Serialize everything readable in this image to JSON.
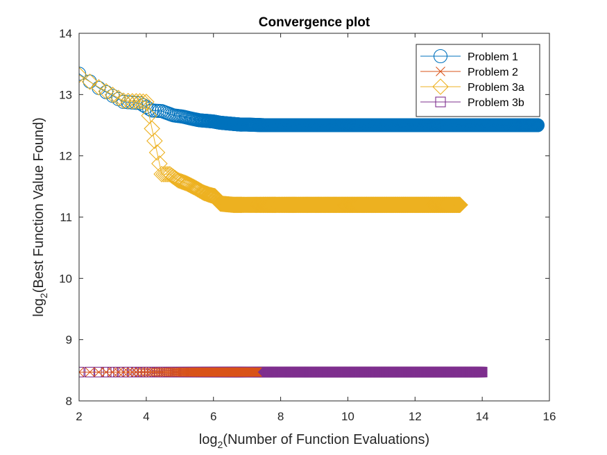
{
  "chart_data": {
    "type": "line",
    "title": "Convergence plot",
    "xlabel": {
      "prefix": "log",
      "sub": "2",
      "suffix": "(Number of Function Evaluations)"
    },
    "ylabel": {
      "prefix": "log",
      "sub": "2",
      "suffix": "(Best Function Value Found)"
    },
    "xlim": [
      2,
      16
    ],
    "ylim": [
      8,
      14
    ],
    "xticks": [
      2,
      4,
      6,
      8,
      10,
      12,
      14,
      16
    ],
    "yticks": [
      8,
      9,
      10,
      11,
      12,
      13,
      14
    ],
    "grid": false,
    "legend": {
      "position": "top-right"
    },
    "series": [
      {
        "name": "Problem 1",
        "color": "#0072BD",
        "marker": "circle",
        "x_end": 15.65,
        "points": [
          [
            2,
            13.34
          ],
          [
            2.58,
            13.11
          ],
          [
            3.32,
            12.88
          ],
          [
            3.81,
            12.86
          ],
          [
            4.17,
            12.74
          ],
          [
            4.46,
            12.73
          ],
          [
            4.81,
            12.66
          ],
          [
            5.09,
            12.64
          ],
          [
            5.32,
            12.61
          ],
          [
            5.58,
            12.58
          ],
          [
            5.81,
            12.57
          ],
          [
            6.0,
            12.56
          ],
          [
            6.2,
            12.54
          ],
          [
            6.4,
            12.53
          ],
          [
            6.6,
            12.52
          ],
          [
            6.8,
            12.51
          ],
          [
            7.0,
            12.51
          ],
          [
            7.5,
            12.5
          ],
          [
            15.65,
            12.5
          ]
        ]
      },
      {
        "name": "Problem 2",
        "color": "#D95319",
        "marker": "x",
        "x_end": 7.3,
        "points": [
          [
            2,
            8.47
          ],
          [
            7.3,
            8.47
          ]
        ]
      },
      {
        "name": "Problem 3a",
        "color": "#EDB120",
        "marker": "diamond",
        "x_end": 13.35,
        "points": [
          [
            2,
            13.32
          ],
          [
            2.58,
            13.12
          ],
          [
            3.32,
            12.9
          ],
          [
            3.58,
            12.89
          ],
          [
            3.81,
            12.89
          ],
          [
            4.0,
            12.88
          ],
          [
            4.46,
            11.7
          ],
          [
            4.7,
            11.7
          ],
          [
            4.95,
            11.6
          ],
          [
            5.2,
            11.55
          ],
          [
            5.45,
            11.48
          ],
          [
            5.7,
            11.4
          ],
          [
            5.9,
            11.36
          ],
          [
            6.05,
            11.34
          ],
          [
            6.2,
            11.22
          ],
          [
            6.6,
            11.2
          ],
          [
            13.35,
            11.2
          ]
        ]
      },
      {
        "name": "Problem 3b",
        "color": "#7E2F8E",
        "marker": "square",
        "x_end": 14.0,
        "points": [
          [
            2,
            8.47
          ],
          [
            14.0,
            8.47
          ]
        ]
      }
    ]
  }
}
